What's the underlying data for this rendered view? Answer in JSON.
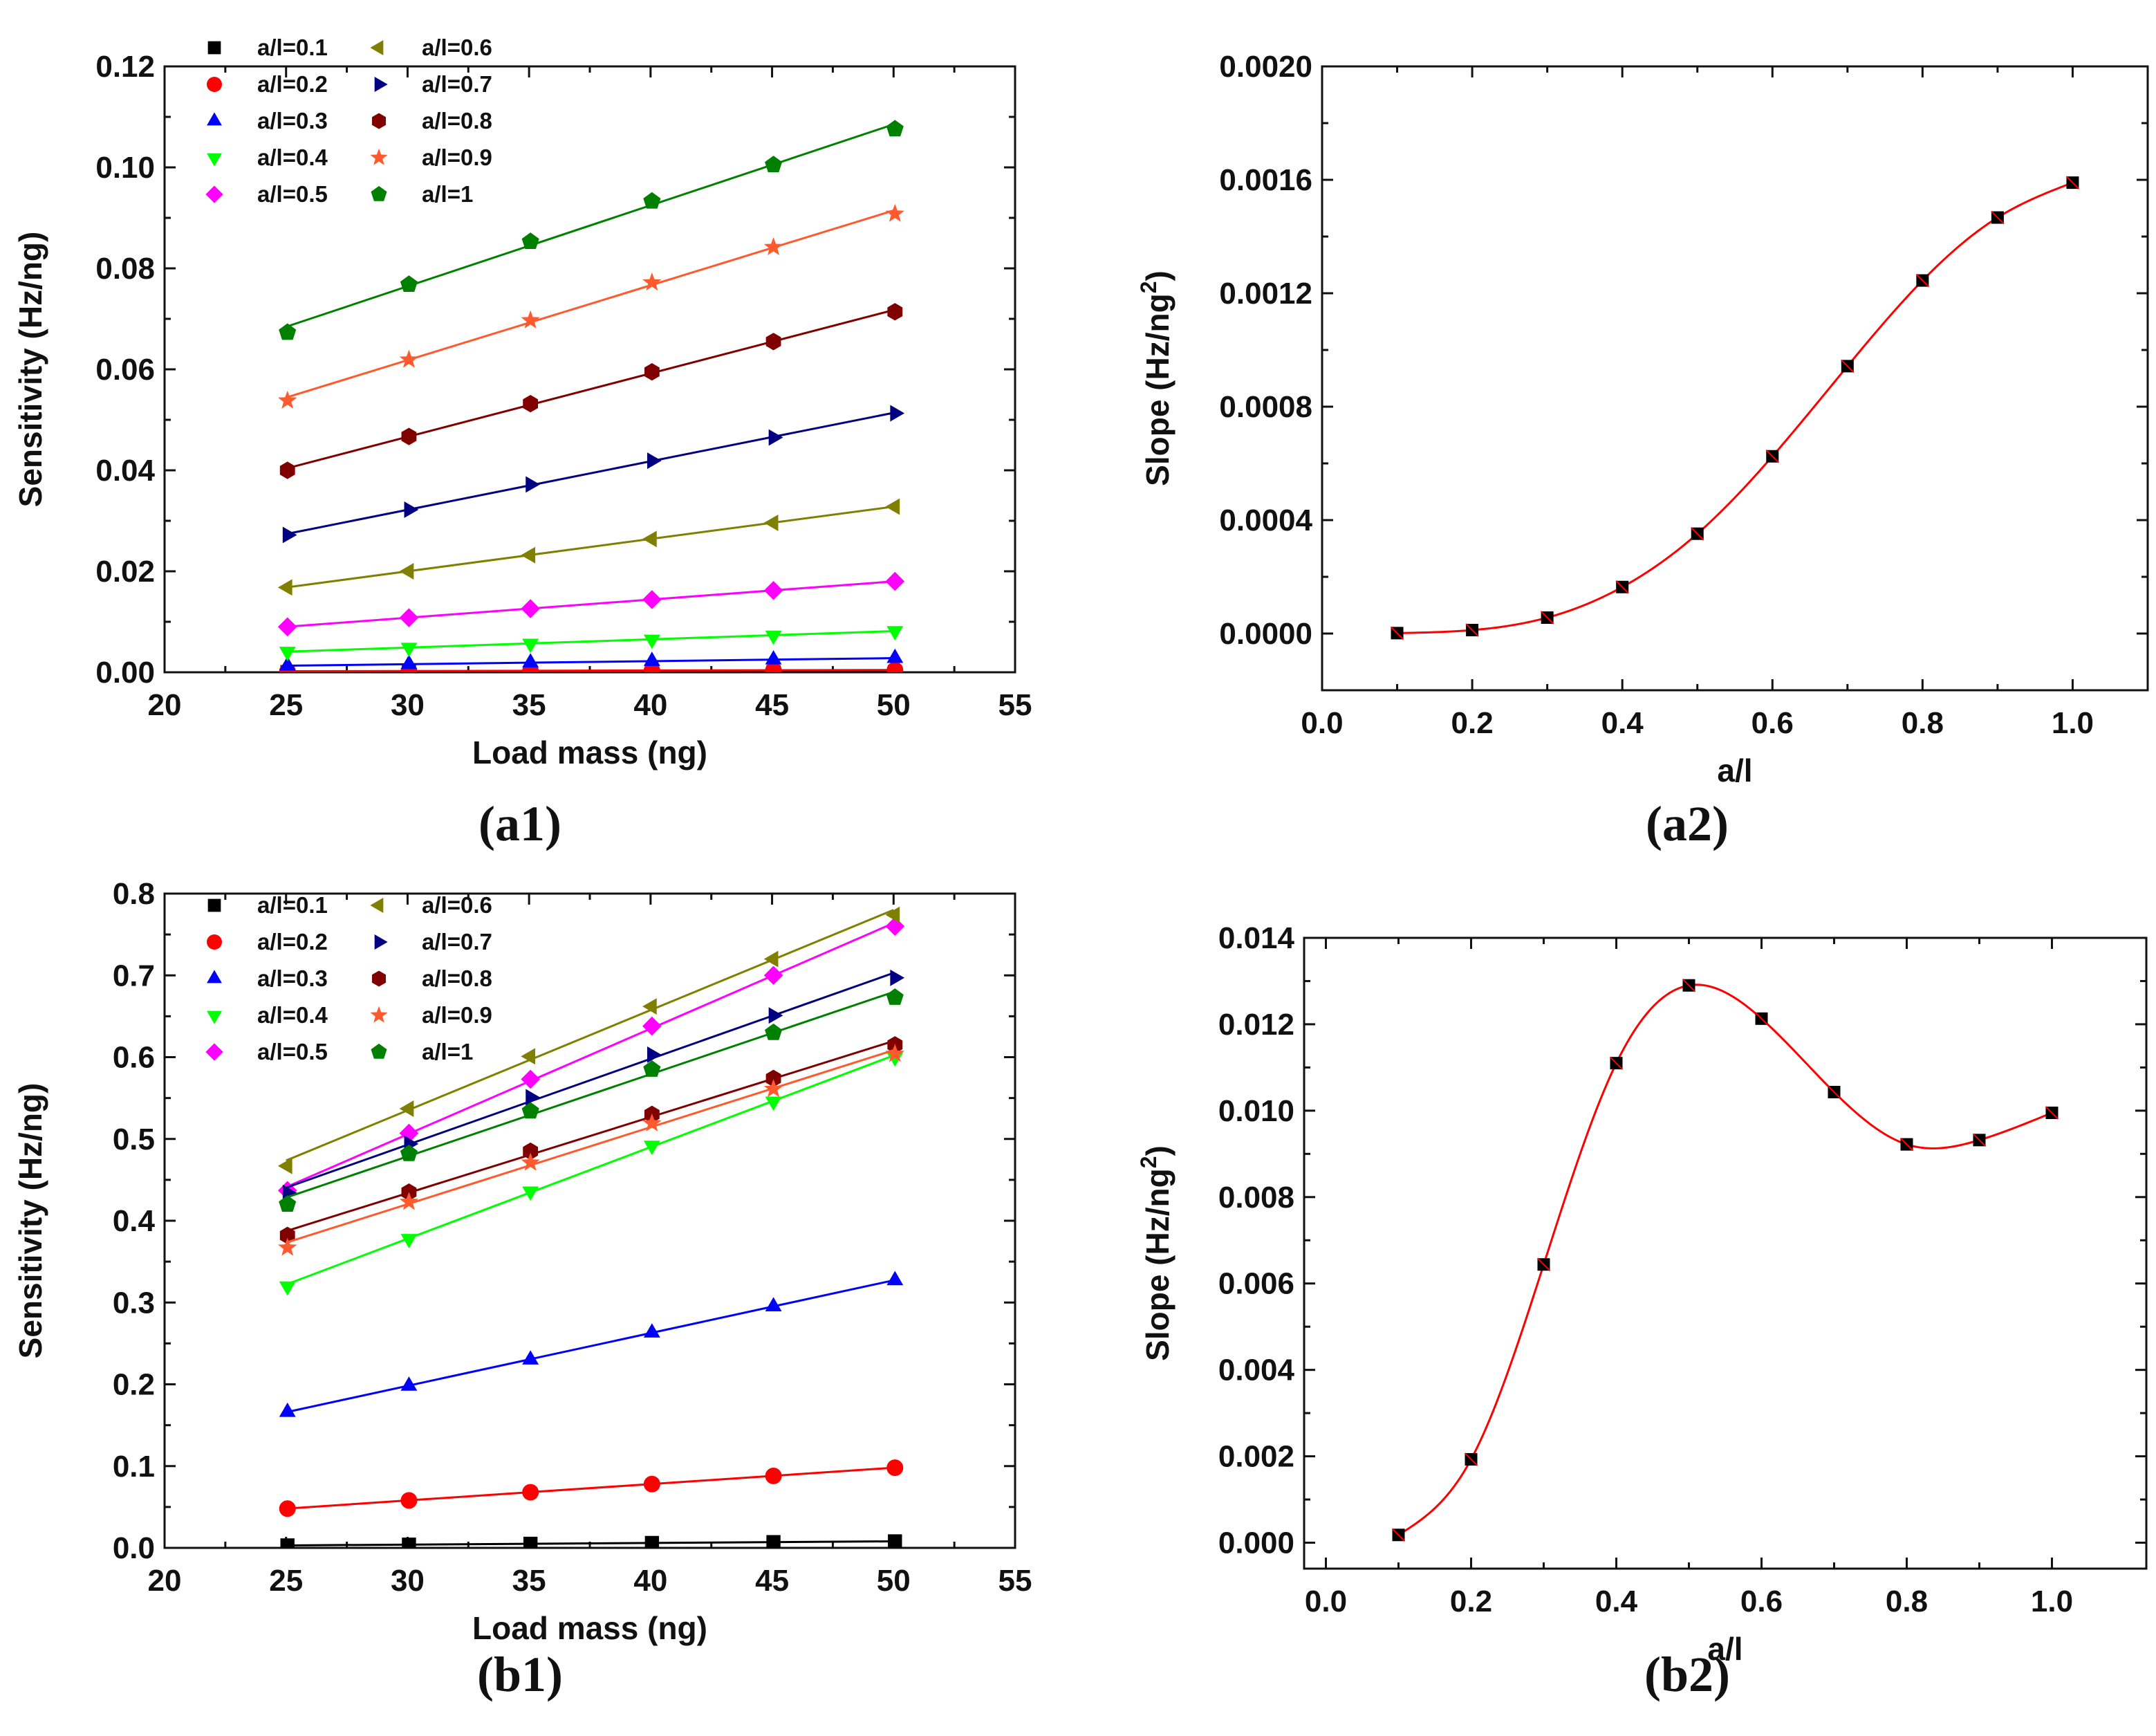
{
  "chart_data": [
    {
      "id": "a1",
      "type": "scatter",
      "panel_label": "(a1)",
      "xlabel": "Load mass (ng)",
      "ylabel": "Sensitivity (Hz/ng)",
      "xlim": [
        20,
        55
      ],
      "ylim": [
        0,
        0.12
      ],
      "xticks": [
        20,
        25,
        30,
        35,
        40,
        45,
        50,
        55
      ],
      "xtick_labels": [
        "20",
        "25",
        "30",
        "35",
        "40",
        "45",
        "50",
        "55"
      ],
      "yticks": [
        0,
        0.02,
        0.04,
        0.06,
        0.08,
        0.1,
        0.12
      ],
      "ytick_labels": [
        "0.00",
        "0.02",
        "0.04",
        "0.06",
        "0.08",
        "0.10",
        "0.12"
      ],
      "legend_position": "top-left",
      "x": [
        25,
        30,
        35,
        40,
        45,
        50
      ],
      "series": [
        {
          "name": "a/l=0.1",
          "color": "#000000",
          "marker": "square",
          "values": [
            2e-05,
            3e-05,
            3e-05,
            4e-05,
            5e-05,
            5e-05
          ]
        },
        {
          "name": "a/l=0.2",
          "color": "#ff0000",
          "marker": "circle",
          "values": [
            0.0002,
            0.00025,
            0.0003,
            0.00035,
            0.0004,
            0.00045
          ]
        },
        {
          "name": "a/l=0.3",
          "color": "#0000ff",
          "marker": "triangle-up",
          "values": [
            0.0013,
            0.0016,
            0.0019,
            0.0022,
            0.0025,
            0.0028
          ]
        },
        {
          "name": "a/l=0.4",
          "color": "#00ff00",
          "marker": "triangle-down",
          "values": [
            0.0041,
            0.0049,
            0.0057,
            0.0065,
            0.0073,
            0.0082
          ]
        },
        {
          "name": "a/l=0.5",
          "color": "#ff00ff",
          "marker": "diamond",
          "values": [
            0.009,
            0.0108,
            0.0126,
            0.0144,
            0.0162,
            0.018
          ]
        },
        {
          "name": "a/l=0.6",
          "color": "#808000",
          "marker": "triangle-left",
          "values": [
            0.0168,
            0.02,
            0.0232,
            0.0264,
            0.0296,
            0.0328
          ]
        },
        {
          "name": "a/l=0.7",
          "color": "#000080",
          "marker": "triangle-right",
          "values": [
            0.0272,
            0.0322,
            0.0372,
            0.0419,
            0.0465,
            0.0513
          ]
        },
        {
          "name": "a/l=0.8",
          "color": "#800000",
          "marker": "hexagon",
          "values": [
            0.04,
            0.0467,
            0.0532,
            0.0595,
            0.0655,
            0.0714
          ]
        },
        {
          "name": "a/l=0.9",
          "color": "#ff5a2e",
          "marker": "star",
          "values": [
            0.0538,
            0.0619,
            0.0697,
            0.0772,
            0.0842,
            0.0908
          ]
        },
        {
          "name": "a/l=1",
          "color": "#008000",
          "marker": "pentagon",
          "values": [
            0.0673,
            0.0768,
            0.0853,
            0.0933,
            0.1005,
            0.1076
          ]
        }
      ]
    },
    {
      "id": "a2",
      "type": "line",
      "panel_label": "(a2)",
      "xlabel": "a/l",
      "ylabel": "Slope (Hz/ng",
      "ylabel_sup": "2",
      "ylabel_end": ")",
      "xlim": [
        0,
        1.1
      ],
      "ylim": [
        -0.0002,
        0.002
      ],
      "xticks": [
        0,
        0.2,
        0.4,
        0.6,
        0.8,
        1.0
      ],
      "xtick_labels": [
        "0.0",
        "0.2",
        "0.4",
        "0.6",
        "0.8",
        "1.0"
      ],
      "yticks": [
        0,
        0.0004,
        0.0008,
        0.0012,
        0.0016,
        0.002
      ],
      "ytick_labels": [
        "0.0000",
        "0.0004",
        "0.0008",
        "0.0012",
        "0.0016",
        "0.0020"
      ],
      "line_color": "#ff0000",
      "marker": "square",
      "x": [
        0.1,
        0.2,
        0.3,
        0.4,
        0.5,
        0.6,
        0.7,
        0.8,
        0.9,
        1.0
      ],
      "values": [
        1.5e-06,
        1.22e-05,
        5.62e-05,
        0.000164,
        0.000352,
        0.000625,
        0.000943,
        0.001245,
        0.001467,
        0.00159
      ]
    },
    {
      "id": "b1",
      "type": "scatter",
      "panel_label": "(b1)",
      "xlabel": "Load mass (ng)",
      "ylabel": "Sensitivity (Hz/ng)",
      "xlim": [
        20,
        55
      ],
      "ylim": [
        0,
        0.8
      ],
      "xticks": [
        20,
        25,
        30,
        35,
        40,
        45,
        50,
        55
      ],
      "xtick_labels": [
        "20",
        "25",
        "30",
        "35",
        "40",
        "45",
        "50",
        "55"
      ],
      "yticks": [
        0,
        0.1,
        0.2,
        0.3,
        0.4,
        0.5,
        0.6,
        0.7,
        0.8
      ],
      "ytick_labels": [
        "0.0",
        "0.1",
        "0.2",
        "0.3",
        "0.4",
        "0.5",
        "0.6",
        "0.7",
        "0.8"
      ],
      "legend_position": "top-left",
      "x": [
        25,
        30,
        35,
        40,
        45,
        50
      ],
      "series": [
        {
          "name": "a/l=0.1",
          "color": "#000000",
          "marker": "square",
          "values": [
            0.003,
            0.004,
            0.005,
            0.006,
            0.007,
            0.008
          ]
        },
        {
          "name": "a/l=0.2",
          "color": "#ff0000",
          "marker": "circle",
          "values": [
            0.048,
            0.058,
            0.068,
            0.078,
            0.088,
            0.098
          ]
        },
        {
          "name": "a/l=0.3",
          "color": "#0000ff",
          "marker": "triangle-up",
          "values": [
            0.166,
            0.198,
            0.23,
            0.263,
            0.295,
            0.327
          ]
        },
        {
          "name": "a/l=0.4",
          "color": "#00ff00",
          "marker": "triangle-down",
          "values": [
            0.32,
            0.378,
            0.436,
            0.492,
            0.546,
            0.6
          ]
        },
        {
          "name": "a/l=0.5",
          "color": "#ff00ff",
          "marker": "diamond",
          "values": [
            0.437,
            0.507,
            0.573,
            0.638,
            0.7,
            0.76
          ]
        },
        {
          "name": "a/l=0.6",
          "color": "#808000",
          "marker": "triangle-left",
          "values": [
            0.467,
            0.537,
            0.601,
            0.662,
            0.72,
            0.774
          ]
        },
        {
          "name": "a/l=0.7",
          "color": "#000080",
          "marker": "triangle-right",
          "values": [
            0.434,
            0.494,
            0.551,
            0.603,
            0.651,
            0.697
          ]
        },
        {
          "name": "a/l=0.8",
          "color": "#800000",
          "marker": "hexagon",
          "values": [
            0.382,
            0.435,
            0.485,
            0.53,
            0.574,
            0.615
          ]
        },
        {
          "name": "a/l=0.9",
          "color": "#ff5a2e",
          "marker": "star",
          "values": [
            0.367,
            0.423,
            0.471,
            0.519,
            0.561,
            0.604
          ]
        },
        {
          "name": "a/l=1",
          "color": "#008000",
          "marker": "pentagon",
          "values": [
            0.42,
            0.482,
            0.534,
            0.585,
            0.63,
            0.673
          ]
        }
      ]
    },
    {
      "id": "b2",
      "type": "line",
      "panel_label": "(b2)",
      "xlabel": "a/l",
      "ylabel": "Slope (Hz/ng",
      "ylabel_sup": "2",
      "ylabel_end": ")",
      "xlim": [
        -0.03,
        1.13
      ],
      "ylim": [
        -0.0006,
        0.014
      ],
      "xticks": [
        0,
        0.2,
        0.4,
        0.6,
        0.8,
        1.0
      ],
      "xtick_labels": [
        "0.0",
        "0.2",
        "0.4",
        "0.6",
        "0.8",
        "1.0"
      ],
      "yticks": [
        0,
        0.002,
        0.004,
        0.006,
        0.008,
        0.01,
        0.012,
        0.014
      ],
      "ytick_labels": [
        "0.000",
        "0.002",
        "0.004",
        "0.006",
        "0.008",
        "0.010",
        "0.012",
        "0.014"
      ],
      "line_color": "#ff0000",
      "marker": "square",
      "x": [
        0.1,
        0.2,
        0.3,
        0.4,
        0.5,
        0.6,
        0.7,
        0.8,
        0.9,
        1.0
      ],
      "values": [
        0.00018,
        0.00193,
        0.00644,
        0.0111,
        0.0129,
        0.01213,
        0.01043,
        0.00922,
        0.00932,
        0.00995
      ]
    }
  ]
}
